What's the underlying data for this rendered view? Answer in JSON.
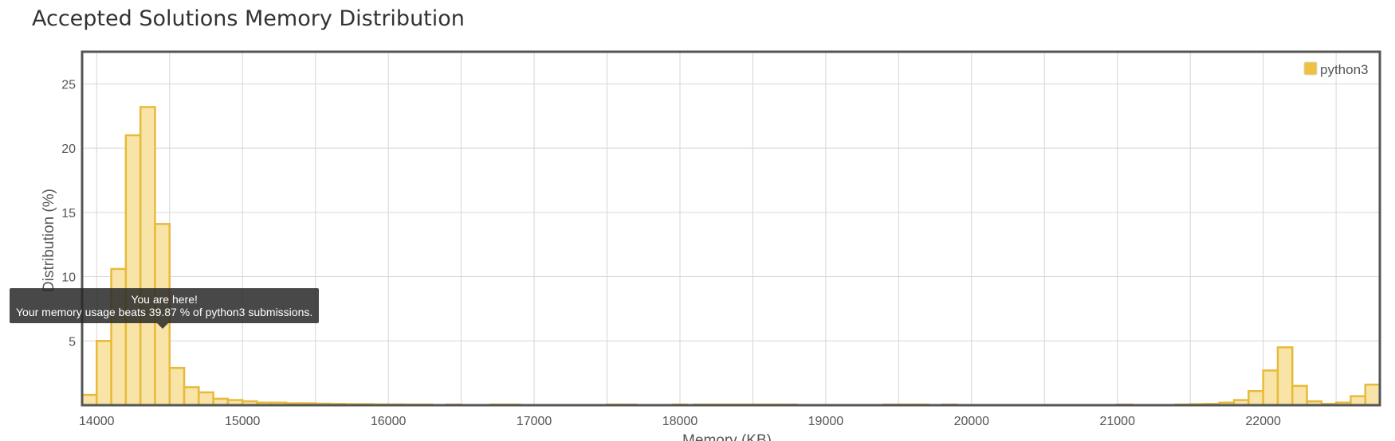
{
  "chart_data": {
    "type": "bar",
    "title": "Accepted Solutions Memory Distribution",
    "xlabel": "Memory (KB)",
    "ylabel": "Distribution (%)",
    "xlim": [
      13900,
      22800
    ],
    "ylim": [
      0,
      27.5
    ],
    "xticks": [
      14000,
      15000,
      16000,
      17000,
      18000,
      19000,
      20000,
      21000,
      22000
    ],
    "yticks": [
      5,
      10,
      15,
      20,
      25
    ],
    "grid": true,
    "legend": {
      "position": "top-right"
    },
    "bin_width": 100,
    "colors": {
      "fill": "#f8e4a7",
      "stroke": "#e8ba3b",
      "legend": "#f0c040",
      "axis": "#555555",
      "grid": "#d6d6d6"
    },
    "series": [
      {
        "name": "python3",
        "x": [
          13950,
          14050,
          14150,
          14250,
          14350,
          14450,
          14550,
          14650,
          14750,
          14850,
          14950,
          15050,
          15150,
          15250,
          15350,
          15450,
          15550,
          15650,
          15750,
          15850,
          15950,
          16050,
          16150,
          16250,
          16450,
          16750,
          16850,
          17550,
          17650,
          18000,
          18150,
          18250,
          18350,
          18450,
          18550,
          18650,
          18750,
          19450,
          19550,
          19650,
          19850,
          21050,
          21450,
          21550,
          21650,
          21750,
          21850,
          21950,
          22050,
          22150,
          22250,
          22350,
          22450,
          22550,
          22650,
          22750
        ],
        "values": [
          0.8,
          5.0,
          10.6,
          21.0,
          23.2,
          14.1,
          2.9,
          1.4,
          1.0,
          0.5,
          0.4,
          0.3,
          0.2,
          0.2,
          0.15,
          0.15,
          0.12,
          0.1,
          0.08,
          0.08,
          0.06,
          0.06,
          0.05,
          0.05,
          0.05,
          0.05,
          0.05,
          0.05,
          0.05,
          0.05,
          0.05,
          0.05,
          0.05,
          0.05,
          0.05,
          0.05,
          0.05,
          0.05,
          0.05,
          0.05,
          0.05,
          0.05,
          0.05,
          0.08,
          0.1,
          0.2,
          0.4,
          1.1,
          2.7,
          4.5,
          1.5,
          0.3,
          0.1,
          0.2,
          0.7,
          1.6
        ]
      }
    ],
    "annotation": {
      "x": 14450,
      "line1": "You are here!",
      "line2": "Your memory usage beats 39.87 % of python3 submissions."
    }
  }
}
